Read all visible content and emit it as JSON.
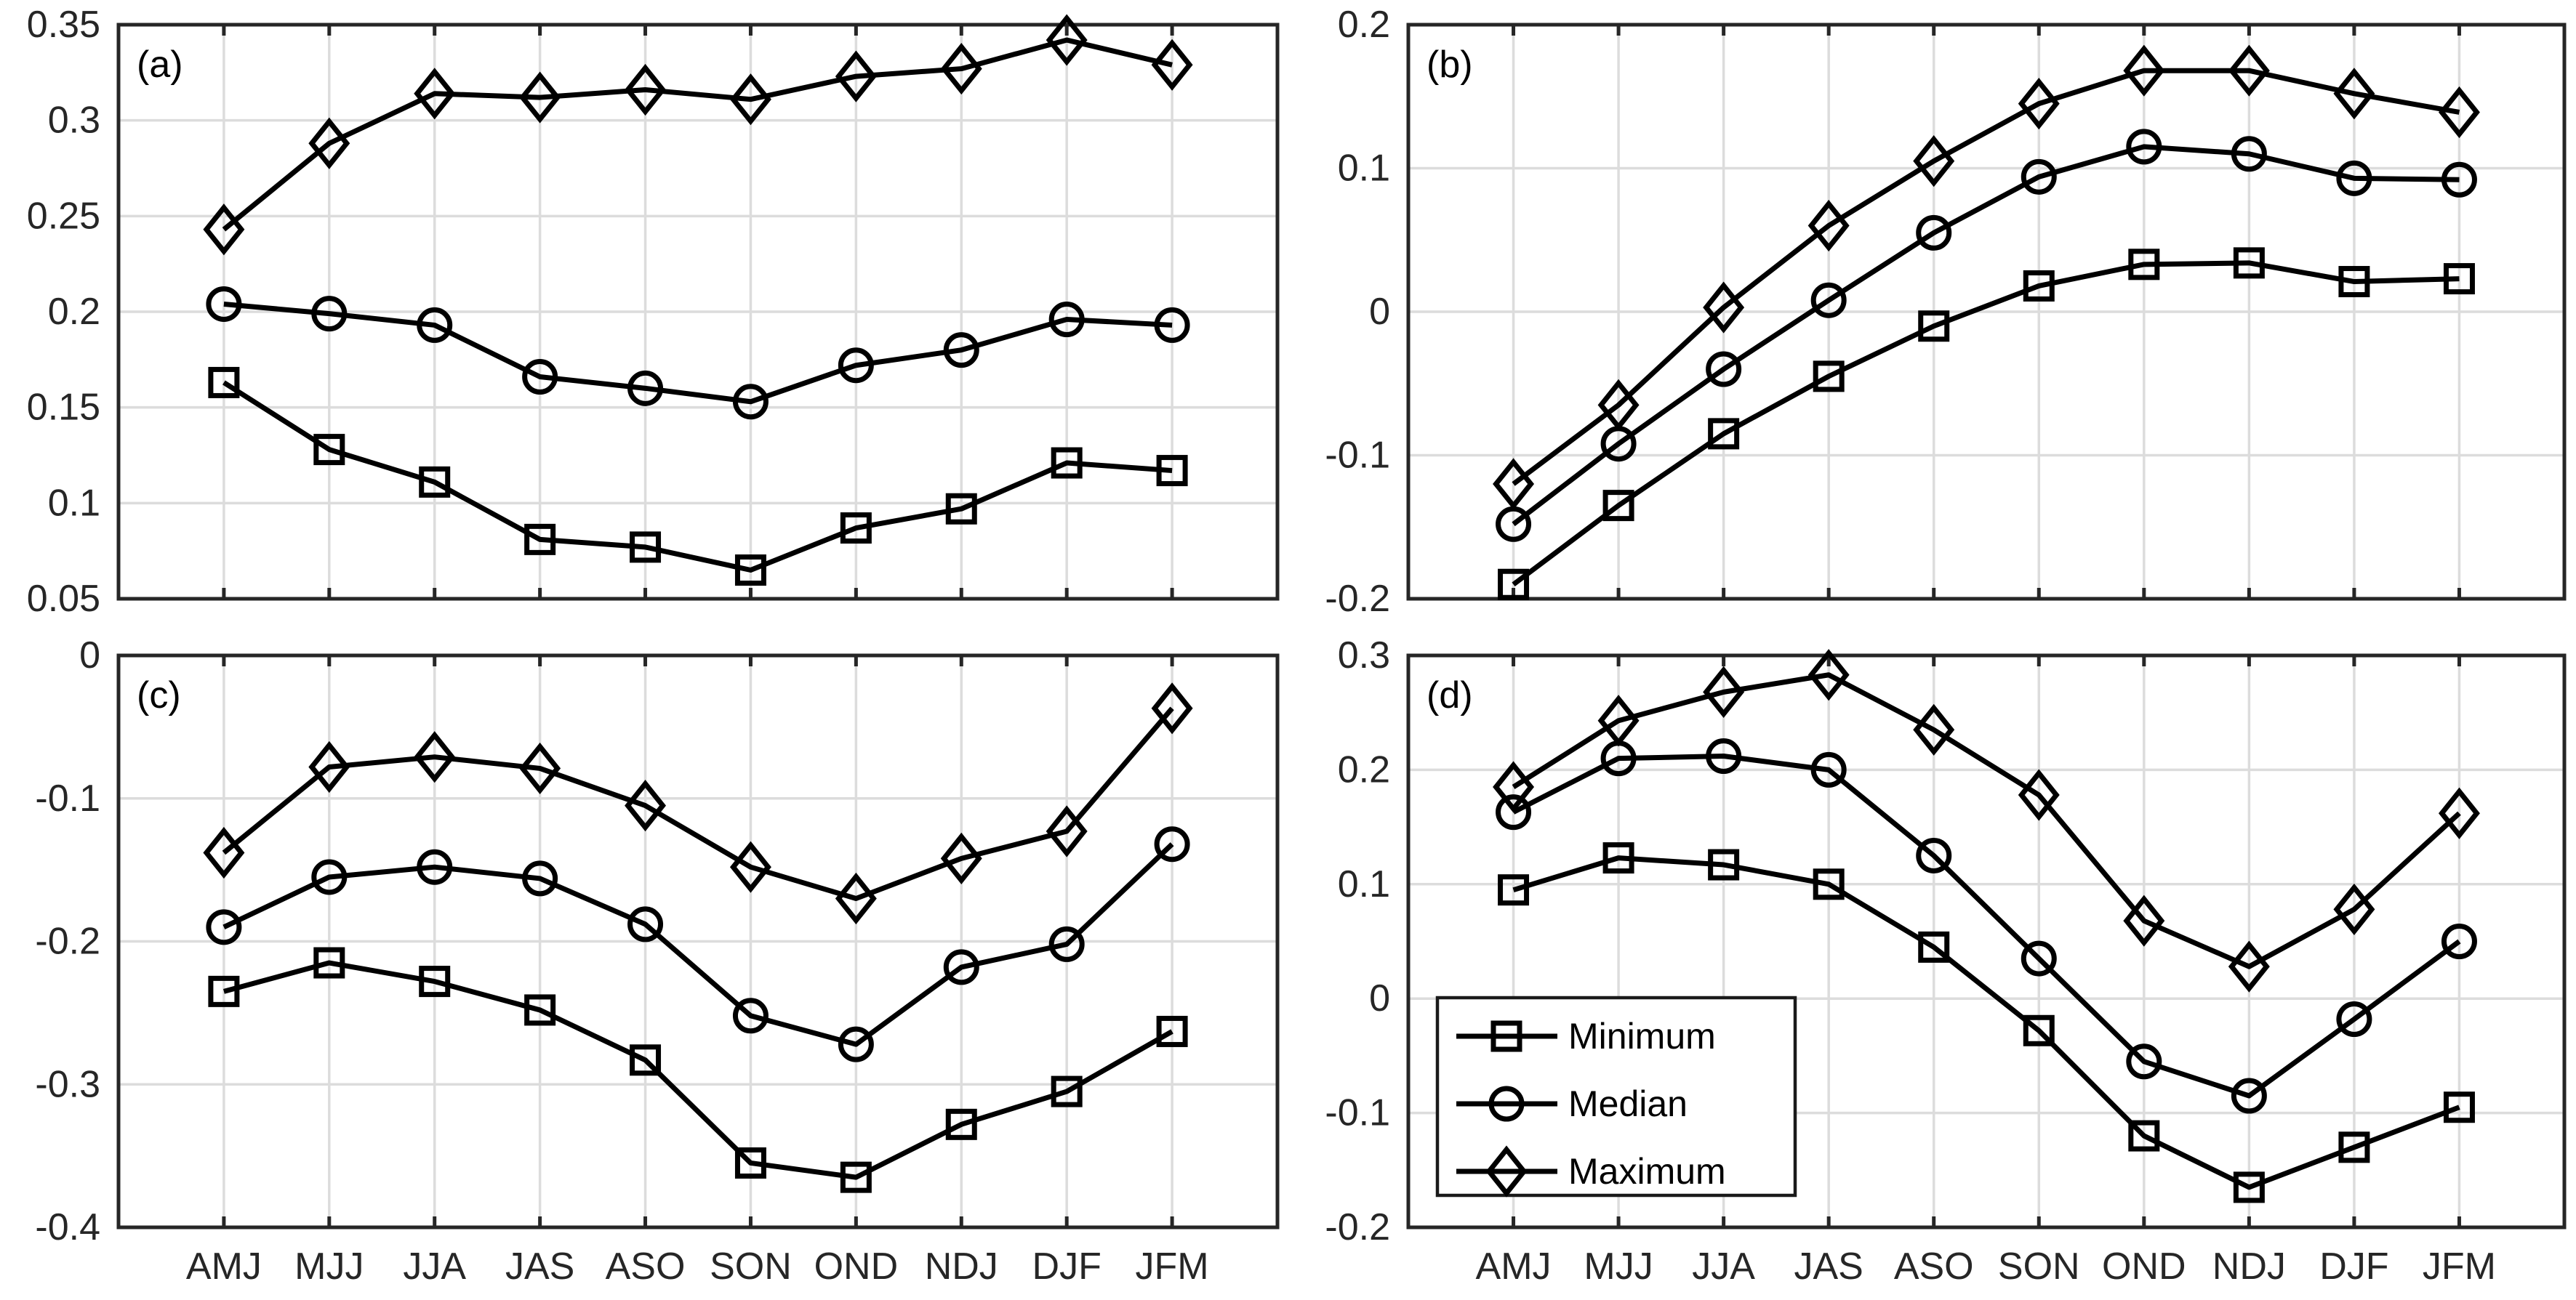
{
  "figure": {
    "background": "#ffffff",
    "series_color": "#000000",
    "frame_color": "#262626",
    "grid_color": "#dcdcdc",
    "label_color": "#262626"
  },
  "legend": {
    "location_panel": "d",
    "entries": [
      {
        "label": "Minimum",
        "marker": "square"
      },
      {
        "label": "Median",
        "marker": "circle"
      },
      {
        "label": "Maximum",
        "marker": "diamond"
      }
    ]
  },
  "chart_data": [
    {
      "type": "line",
      "panel": "a",
      "panel_label": "(a)",
      "categories": [
        "AMJ",
        "MJJ",
        "JJA",
        "JAS",
        "ASO",
        "SON",
        "OND",
        "NDJ",
        "DJF",
        "JFM"
      ],
      "ylim": [
        0.05,
        0.35
      ],
      "yticks": [
        0.05,
        0.1,
        0.15,
        0.2,
        0.25,
        0.3,
        0.35
      ],
      "ytick_labels": [
        "0.05",
        "0.1",
        "0.15",
        "0.2",
        "0.25",
        "0.3",
        "0.35"
      ],
      "grid": true,
      "show_x_tick_labels": false,
      "show_legend": false,
      "series": [
        {
          "name": "Minimum",
          "marker": "square",
          "values": [
            0.163,
            0.128,
            0.111,
            0.081,
            0.077,
            0.065,
            0.087,
            0.097,
            0.121,
            0.117
          ]
        },
        {
          "name": "Median",
          "marker": "circle",
          "values": [
            0.204,
            0.199,
            0.193,
            0.166,
            0.16,
            0.153,
            0.172,
            0.18,
            0.196,
            0.193
          ]
        },
        {
          "name": "Maximum",
          "marker": "diamond",
          "values": [
            0.243,
            0.288,
            0.314,
            0.312,
            0.316,
            0.311,
            0.323,
            0.327,
            0.342,
            0.329
          ]
        }
      ]
    },
    {
      "type": "line",
      "panel": "b",
      "panel_label": "(b)",
      "categories": [
        "AMJ",
        "MJJ",
        "JJA",
        "JAS",
        "ASO",
        "SON",
        "OND",
        "NDJ",
        "DJF",
        "JFM"
      ],
      "ylim": [
        -0.2,
        0.2
      ],
      "yticks": [
        -0.2,
        -0.1,
        0,
        0.1,
        0.2
      ],
      "ytick_labels": [
        "-0.2",
        "-0.1",
        "0",
        "0.1",
        "0.2"
      ],
      "grid": true,
      "show_x_tick_labels": false,
      "show_legend": false,
      "series": [
        {
          "name": "Minimum",
          "marker": "square",
          "values": [
            -0.19,
            -0.135,
            -0.085,
            -0.045,
            -0.01,
            0.018,
            0.033,
            0.034,
            0.021,
            0.023
          ]
        },
        {
          "name": "Median",
          "marker": "circle",
          "values": [
            -0.148,
            -0.092,
            -0.04,
            0.008,
            0.055,
            0.094,
            0.115,
            0.11,
            0.093,
            0.092
          ]
        },
        {
          "name": "Maximum",
          "marker": "diamond",
          "values": [
            -0.12,
            -0.065,
            0.003,
            0.06,
            0.105,
            0.145,
            0.168,
            0.168,
            0.152,
            0.139
          ]
        }
      ]
    },
    {
      "type": "line",
      "panel": "c",
      "panel_label": "(c)",
      "categories": [
        "AMJ",
        "MJJ",
        "JJA",
        "JAS",
        "ASO",
        "SON",
        "OND",
        "NDJ",
        "DJF",
        "JFM"
      ],
      "ylim": [
        -0.4,
        0
      ],
      "yticks": [
        -0.4,
        -0.3,
        -0.2,
        -0.1,
        0
      ],
      "ytick_labels": [
        "-0.4",
        "-0.3",
        "-0.2",
        "-0.1",
        "0"
      ],
      "grid": true,
      "show_x_tick_labels": true,
      "show_legend": false,
      "series": [
        {
          "name": "Minimum",
          "marker": "square",
          "values": [
            -0.235,
            -0.215,
            -0.228,
            -0.248,
            -0.283,
            -0.355,
            -0.365,
            -0.328,
            -0.305,
            -0.263
          ]
        },
        {
          "name": "Median",
          "marker": "circle",
          "values": [
            -0.19,
            -0.155,
            -0.148,
            -0.156,
            -0.188,
            -0.252,
            -0.272,
            -0.218,
            -0.202,
            -0.132
          ]
        },
        {
          "name": "Maximum",
          "marker": "diamond",
          "values": [
            -0.138,
            -0.078,
            -0.071,
            -0.079,
            -0.105,
            -0.148,
            -0.17,
            -0.142,
            -0.123,
            -0.037
          ]
        }
      ]
    },
    {
      "type": "line",
      "panel": "d",
      "panel_label": "(d)",
      "categories": [
        "AMJ",
        "MJJ",
        "JJA",
        "JAS",
        "ASO",
        "SON",
        "OND",
        "NDJ",
        "DJF",
        "JFM"
      ],
      "ylim": [
        -0.2,
        0.3
      ],
      "yticks": [
        -0.2,
        -0.1,
        0,
        0.1,
        0.2,
        0.3
      ],
      "ytick_labels": [
        "-0.2",
        "-0.1",
        "0",
        "0.1",
        "0.2",
        "0.3"
      ],
      "grid": true,
      "show_x_tick_labels": true,
      "show_legend": true,
      "series": [
        {
          "name": "Minimum",
          "marker": "square",
          "values": [
            0.095,
            0.123,
            0.117,
            0.1,
            0.045,
            -0.028,
            -0.12,
            -0.165,
            -0.13,
            -0.095
          ]
        },
        {
          "name": "Median",
          "marker": "circle",
          "values": [
            0.163,
            0.21,
            0.212,
            0.2,
            0.125,
            0.035,
            -0.055,
            -0.085,
            -0.018,
            0.05
          ]
        },
        {
          "name": "Maximum",
          "marker": "diamond",
          "values": [
            0.185,
            0.243,
            0.268,
            0.283,
            0.235,
            0.178,
            0.068,
            0.028,
            0.078,
            0.162
          ]
        }
      ]
    }
  ]
}
